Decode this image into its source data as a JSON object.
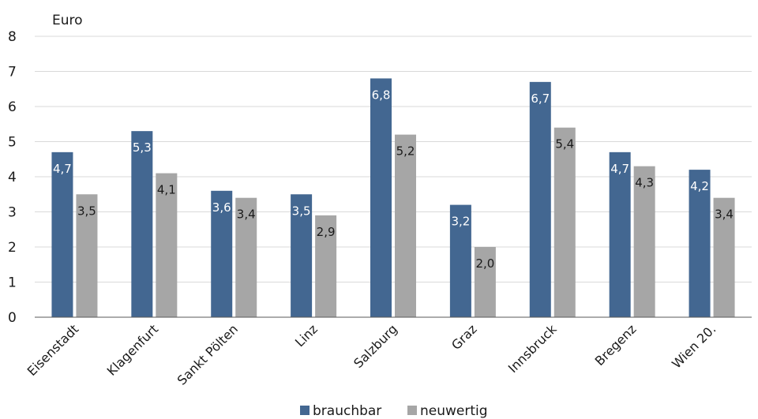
{
  "chart_data": {
    "type": "bar",
    "ylabel": "Euro",
    "ylim": [
      0,
      8
    ],
    "yticks": [
      0,
      1,
      2,
      3,
      4,
      5,
      6,
      7,
      8
    ],
    "grid": true,
    "legend_position": "bottom",
    "categories": [
      "Eisenstadt",
      "Klagenfurt",
      "Sankt Pölten",
      "Linz",
      "Salzburg",
      "Graz",
      "Innsbruck",
      "Bregenz",
      "Wien 20."
    ],
    "series": [
      {
        "name": "brauchbar",
        "color": "#436791",
        "label_color": "#ffffff",
        "values": [
          4.7,
          5.3,
          3.6,
          3.5,
          6.8,
          3.2,
          6.7,
          4.7,
          4.2
        ],
        "labels": [
          "4,7",
          "5,3",
          "3,6",
          "3,5",
          "6,8",
          "3,2",
          "6,7",
          "4,7",
          "4,2"
        ]
      },
      {
        "name": "neuwertig",
        "color": "#a6a6a6",
        "label_color": "#1a1a1a",
        "values": [
          3.5,
          4.1,
          3.4,
          2.9,
          5.2,
          2.0,
          5.4,
          4.3,
          3.4
        ],
        "labels": [
          "3,5",
          "4,1",
          "3,4",
          "2,9",
          "5,2",
          "2,0",
          "5,4",
          "4,3",
          "3,4"
        ]
      }
    ],
    "gridline_color": "#d9d9d9",
    "axis_color": "#595959"
  }
}
